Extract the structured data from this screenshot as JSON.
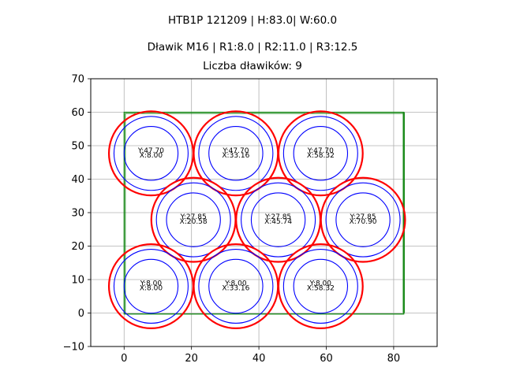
{
  "chart_data": {
    "type": "scatter",
    "title": "HTB1P 121209 | H:83.0| W:60.0",
    "subtitle": "Dławik M16 | R1:8.0 | R2:11.0 | R3:12.5",
    "subtitle2": "Liczba dławików: 9",
    "xlabel": "",
    "ylabel": "",
    "xlim": [
      -9.9,
      92.9
    ],
    "ylim": [
      -10,
      70
    ],
    "xticks": [
      0,
      20,
      40,
      60,
      80
    ],
    "yticks": [
      -10,
      0,
      10,
      20,
      30,
      40,
      50,
      60,
      70
    ],
    "grid": true,
    "legend": null,
    "rectangle": {
      "x": 0,
      "y": 0,
      "width": 83.0,
      "height": 60.0,
      "color": "#1a8a1a"
    },
    "radii": {
      "R1": 8.0,
      "R2": 11.0,
      "R3": 12.5
    },
    "colors": {
      "R1": "#0000ff",
      "R2": "#0000ff",
      "R3": "#ff0000"
    },
    "points": [
      {
        "x": 8.0,
        "y": 47.7,
        "label_y": "Y:47.70",
        "label_x": "X:8.00"
      },
      {
        "x": 33.16,
        "y": 47.7,
        "label_y": "Y:47.70",
        "label_x": "X:33.16"
      },
      {
        "x": 58.32,
        "y": 47.7,
        "label_y": "Y:47.70",
        "label_x": "X:58.32"
      },
      {
        "x": 20.58,
        "y": 27.85,
        "label_y": "Y:27.85",
        "label_x": "X:20.58"
      },
      {
        "x": 45.74,
        "y": 27.85,
        "label_y": "Y:27.85",
        "label_x": "X:45.74"
      },
      {
        "x": 70.9,
        "y": 27.85,
        "label_y": "Y:27.85",
        "label_x": "X:70.90"
      },
      {
        "x": 8.0,
        "y": 8.0,
        "label_y": "Y:8.00",
        "label_x": "X:8.00"
      },
      {
        "x": 33.16,
        "y": 8.0,
        "label_y": "Y:8.00",
        "label_x": "X:33.16"
      },
      {
        "x": 58.32,
        "y": 8.0,
        "label_y": "Y:8.00",
        "label_x": "X:58.32"
      }
    ]
  }
}
